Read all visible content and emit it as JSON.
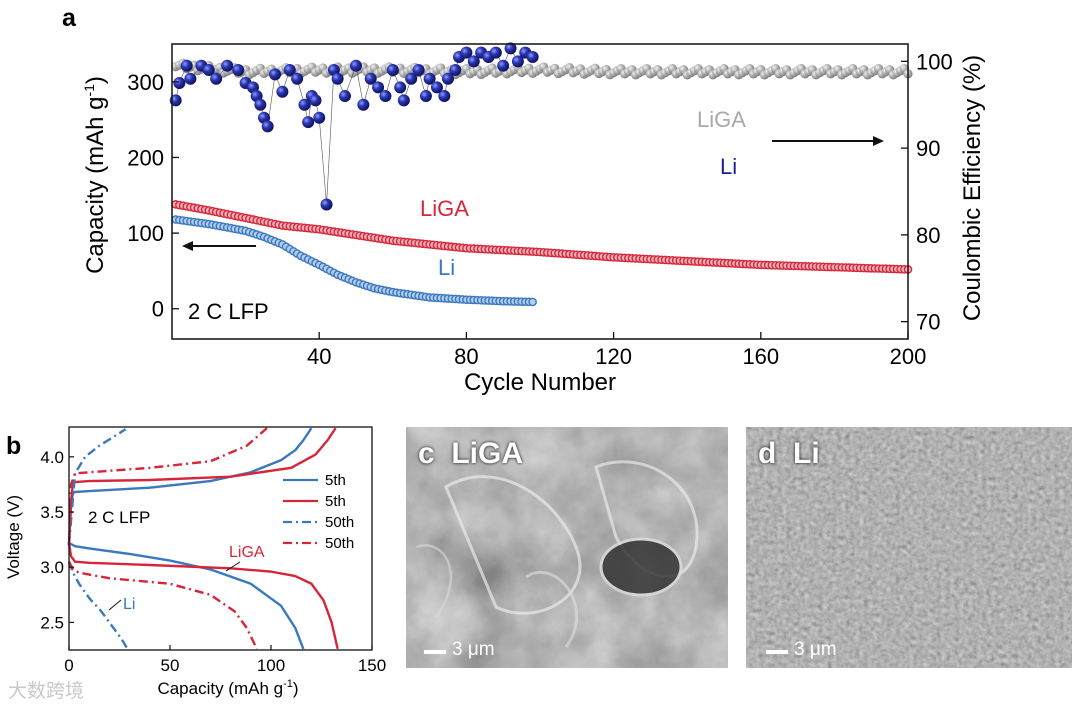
{
  "panel_labels": {
    "a": "a",
    "b": "b",
    "c": "c",
    "d": "d"
  },
  "chart_data": [
    {
      "type": "scatter",
      "panel": "a",
      "xlabel": "Cycle Number",
      "ylabel_left": "Capacity (mAh g",
      "ylabel_left_sup": "-1",
      "ylabel_left_tail": ")",
      "ylabel_right": "Coulombic Efficiency (%)",
      "xlim": [
        0,
        200
      ],
      "ylim_left": [
        -40,
        350
      ],
      "ylim_right": [
        68,
        102
      ],
      "xticks": [
        40,
        80,
        120,
        160,
        200
      ],
      "yticks_left": [
        0,
        100,
        200,
        300
      ],
      "yticks_right": [
        70,
        80,
        90,
        100
      ],
      "annotations": {
        "condition": "2 C  LFP",
        "liga_capacity_label": "LiGA",
        "li_capacity_label": "Li",
        "liga_ce_label": "LiGA",
        "li_ce_label": "Li"
      },
      "series": [
        {
          "name": "LiGA capacity",
          "axis": "left",
          "color": "#d6263a",
          "x": [
            1,
            10,
            20,
            30,
            40,
            60,
            80,
            100,
            120,
            140,
            160,
            180,
            200
          ],
          "values": [
            138,
            130,
            120,
            110,
            105,
            90,
            80,
            75,
            68,
            63,
            58,
            55,
            52
          ]
        },
        {
          "name": "Li capacity",
          "axis": "left",
          "color": "#3a78c0",
          "x": [
            1,
            10,
            20,
            25,
            30,
            35,
            40,
            45,
            50,
            55,
            60,
            70,
            80,
            90,
            98
          ],
          "values": [
            118,
            112,
            103,
            95,
            85,
            70,
            58,
            45,
            35,
            27,
            22,
            15,
            12,
            10,
            9
          ]
        },
        {
          "name": "LiGA CE",
          "axis": "right",
          "color": "#a9a9a9",
          "x": [
            1,
            20,
            40,
            60,
            80,
            100,
            120,
            140,
            160,
            180,
            200
          ],
          "values": [
            99.5,
            98.8,
            99.0,
            99.0,
            98.8,
            99.0,
            98.8,
            98.8,
            98.8,
            98.8,
            98.8
          ]
        },
        {
          "name": "Li CE",
          "axis": "right",
          "color": "#1c1f8c",
          "x": [
            1,
            2,
            4,
            5,
            8,
            10,
            12,
            15,
            18,
            20,
            22,
            23,
            24,
            25,
            26,
            28,
            30,
            32,
            34,
            36,
            37,
            38,
            39,
            40,
            42,
            44,
            45,
            47,
            50,
            52,
            54,
            56,
            58,
            60,
            62,
            63,
            65,
            67,
            69,
            70,
            72,
            74,
            75,
            77,
            78,
            80,
            82,
            84,
            86,
            88,
            90,
            92,
            94,
            96,
            98
          ],
          "values": [
            95.5,
            97.5,
            99.5,
            98.0,
            99.5,
            99.0,
            98.0,
            99.5,
            99.0,
            97.5,
            97.0,
            96.0,
            95.0,
            93.5,
            92.5,
            98.5,
            96.5,
            99.0,
            98.0,
            95.0,
            93.0,
            96.0,
            95.5,
            93.5,
            83.5,
            99.0,
            98.0,
            96.0,
            99.5,
            95.0,
            98.0,
            97.0,
            96.0,
            99.0,
            97.0,
            95.5,
            98.0,
            99.0,
            96.0,
            98.0,
            97.0,
            96.0,
            98.0,
            99.0,
            100.5,
            101.0,
            100.0,
            101.0,
            100.5,
            101.0,
            99.5,
            101.5,
            100.0,
            101.0,
            100.5
          ]
        }
      ]
    },
    {
      "type": "line",
      "panel": "b",
      "xlabel": "Capacity (mAh g",
      "xlabel_sup": "-1",
      "xlabel_tail": ")",
      "ylabel": "Voltage (V)",
      "xlim": [
        0,
        150
      ],
      "ylim": [
        2.25,
        4.27
      ],
      "xticks": [
        0,
        50,
        100,
        150
      ],
      "yticks": [
        2.5,
        3.0,
        3.5,
        4.0
      ],
      "annotations": {
        "condition": "2 C  LFP",
        "liga_label": "LiGA",
        "li_label": "Li"
      },
      "legend": [
        {
          "label": "5th",
          "color": "#3a78c0",
          "dash": "solid"
        },
        {
          "label": "5th",
          "color": "#d6263a",
          "dash": "solid"
        },
        {
          "label": "50th",
          "color": "#3a78c0",
          "dash": "dashdot"
        },
        {
          "label": "50th",
          "color": "#d6263a",
          "dash": "dashdot"
        }
      ],
      "series": [
        {
          "name": "Li 5th charge",
          "color": "#3a78c0",
          "dash": "solid",
          "x": [
            0,
            1,
            2,
            10,
            40,
            70,
            90,
            105,
            112,
            116,
            120
          ],
          "values": [
            3.2,
            3.55,
            3.68,
            3.69,
            3.72,
            3.78,
            3.86,
            3.97,
            4.06,
            4.15,
            4.26
          ]
        },
        {
          "name": "LiGA 5th charge",
          "color": "#d6263a",
          "dash": "solid",
          "x": [
            0,
            1,
            2,
            10,
            40,
            80,
            110,
            122,
            128,
            132
          ],
          "values": [
            3.2,
            3.6,
            3.77,
            3.78,
            3.79,
            3.82,
            3.9,
            4.02,
            4.15,
            4.26
          ]
        },
        {
          "name": "Li 50th charge",
          "color": "#3a78c0",
          "dash": "dashdot",
          "x": [
            0,
            3,
            8,
            15,
            22,
            28
          ],
          "values": [
            3.2,
            3.85,
            4.0,
            4.1,
            4.18,
            4.25
          ]
        },
        {
          "name": "LiGA 50th charge",
          "color": "#d6263a",
          "dash": "dashdot",
          "x": [
            0,
            1,
            3,
            10,
            40,
            70,
            88,
            98
          ],
          "values": [
            3.2,
            3.75,
            3.85,
            3.86,
            3.9,
            3.96,
            4.1,
            4.26
          ]
        },
        {
          "name": "Li 5th discharge",
          "color": "#3a78c0",
          "dash": "solid",
          "x": [
            0,
            1,
            3,
            10,
            30,
            50,
            70,
            90,
            105,
            112,
            116
          ],
          "values": [
            3.22,
            3.21,
            3.19,
            3.17,
            3.12,
            3.06,
            2.98,
            2.85,
            2.65,
            2.45,
            2.26
          ]
        },
        {
          "name": "LiGA 5th discharge",
          "color": "#d6263a",
          "dash": "solid",
          "x": [
            0,
            1,
            3,
            10,
            40,
            80,
            100,
            112,
            120,
            126,
            130,
            133
          ],
          "values": [
            3.22,
            3.1,
            3.05,
            3.04,
            3.02,
            2.99,
            2.96,
            2.92,
            2.85,
            2.7,
            2.5,
            2.26
          ]
        },
        {
          "name": "Li 50th discharge",
          "color": "#3a78c0",
          "dash": "dashdot",
          "x": [
            0,
            2,
            5,
            10,
            16,
            22,
            26,
            29
          ],
          "values": [
            3.05,
            2.95,
            2.85,
            2.72,
            2.6,
            2.45,
            2.35,
            2.26
          ]
        },
        {
          "name": "LiGA 50th discharge",
          "color": "#d6263a",
          "dash": "dashdot",
          "x": [
            0,
            2,
            5,
            20,
            50,
            70,
            82,
            88,
            93
          ],
          "values": [
            3.05,
            2.98,
            2.95,
            2.9,
            2.85,
            2.75,
            2.6,
            2.45,
            2.26
          ]
        }
      ]
    }
  ],
  "micrographs": {
    "c": {
      "title": "LiGA",
      "scale": "3 μm"
    },
    "d": {
      "title": "Li",
      "scale": "3 μm"
    }
  },
  "watermark": "大数跨境"
}
